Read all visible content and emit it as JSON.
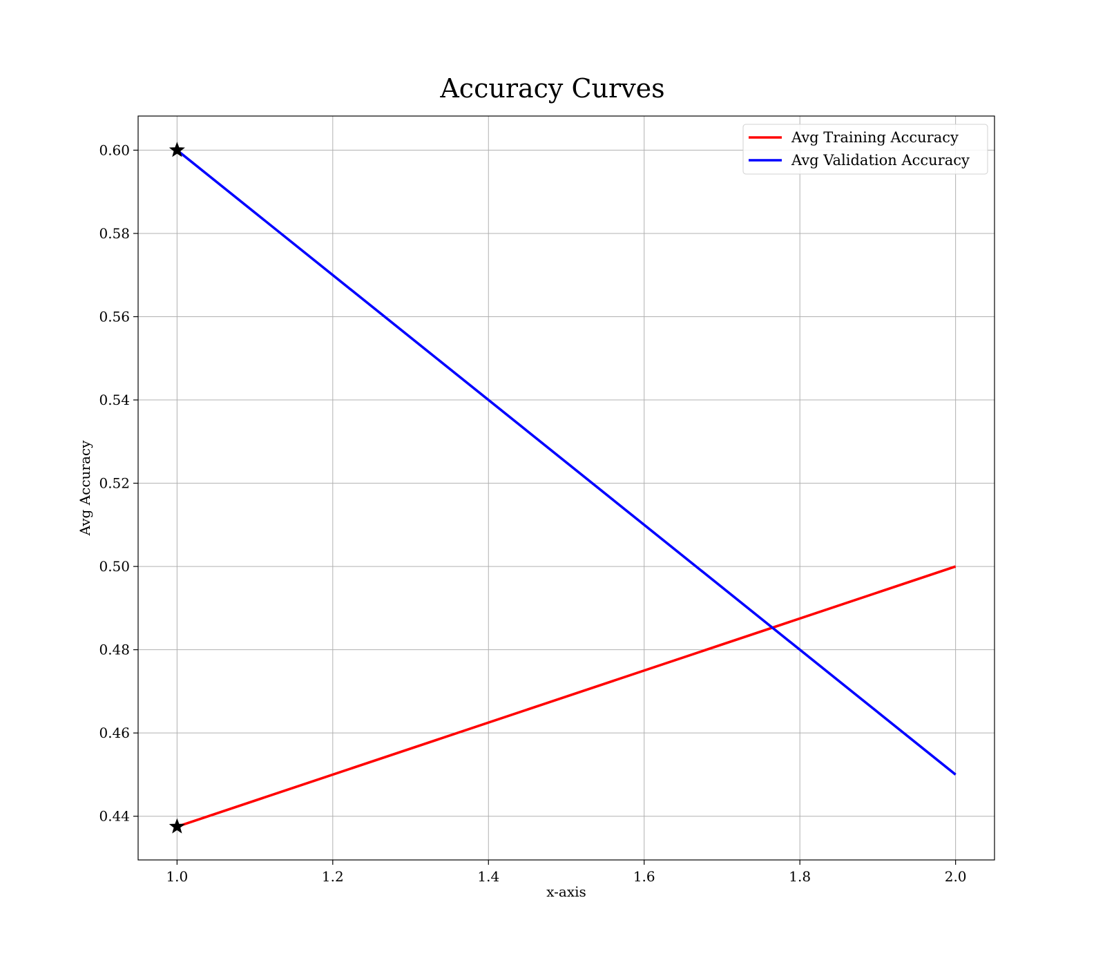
{
  "chart_data": {
    "type": "line",
    "title": "Accuracy Curves",
    "xlabel": "x-axis",
    "ylabel": "Avg Accuracy",
    "xlim": [
      0.95,
      2.05
    ],
    "ylim": [
      0.4295,
      0.6082
    ],
    "xticks": [
      1.0,
      1.2,
      1.4,
      1.6,
      1.8,
      2.0
    ],
    "xtick_labels": [
      "1.0",
      "1.2",
      "1.4",
      "1.6",
      "1.8",
      "2.0"
    ],
    "yticks": [
      0.44,
      0.46,
      0.48,
      0.5,
      0.52,
      0.54,
      0.56,
      0.58,
      0.6
    ],
    "ytick_labels": [
      "0.44",
      "0.46",
      "0.48",
      "0.50",
      "0.52",
      "0.54",
      "0.56",
      "0.58",
      "0.60"
    ],
    "grid": true,
    "legend_position": "top-right",
    "series": [
      {
        "name": "Avg Training Accuracy",
        "color": "#ff0000",
        "x": [
          1.0,
          2.0
        ],
        "y": [
          0.4375,
          0.5
        ]
      },
      {
        "name": "Avg Validation Accuracy",
        "color": "#0000ff",
        "x": [
          1.0,
          2.0
        ],
        "y": [
          0.6,
          0.45
        ]
      }
    ],
    "markers": [
      {
        "x": 1.0,
        "y": 0.6,
        "symbol": "star",
        "color": "#000000"
      },
      {
        "x": 1.0,
        "y": 0.4375,
        "symbol": "star",
        "color": "#000000"
      }
    ]
  }
}
